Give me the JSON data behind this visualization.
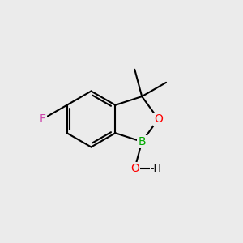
{
  "bg_color": "#ebebeb",
  "bond_color": "#000000",
  "bond_width": 1.5,
  "atom_labels": {
    "F": {
      "color": "#cc44aa",
      "fontsize": 10
    },
    "O": {
      "color": "#ff0000",
      "fontsize": 10
    },
    "B": {
      "color": "#00aa00",
      "fontsize": 10
    },
    "H": {
      "color": "#000000",
      "fontsize": 9
    }
  },
  "figsize": [
    3.0,
    3.0
  ],
  "dpi": 100
}
